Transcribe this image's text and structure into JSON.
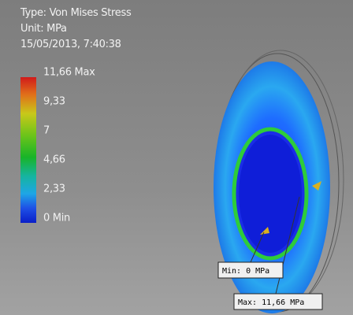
{
  "header": {
    "type": "Type: Von Mises Stress",
    "unit": "Unit: MPa",
    "timestamp": "15/05/2013, 7:40:38"
  },
  "legend": {
    "labels": [
      "11,66 Max",
      "9,33",
      "7",
      "4,66",
      "2,33",
      "0 Min"
    ]
  },
  "callouts": {
    "min": "Min: 0 MPa",
    "max": "Max: 11,66 MPa"
  }
}
